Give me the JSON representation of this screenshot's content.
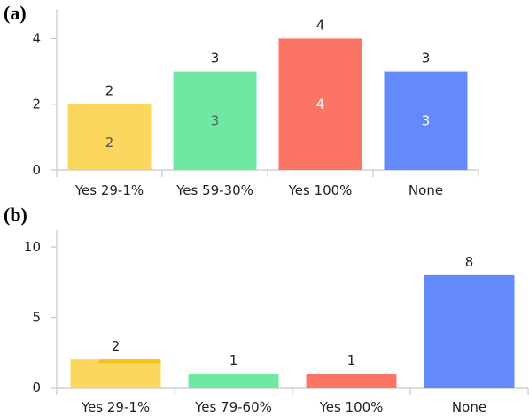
{
  "chart_data": [
    {
      "panel_label": "(a)",
      "type": "bar",
      "categories": [
        "Yes 29-1%",
        "Yes 59-30%",
        "Yes 100%",
        "None"
      ],
      "values": [
        2,
        3,
        4,
        3
      ],
      "inside_labels": [
        "2",
        "3",
        "4",
        "3"
      ],
      "colors": [
        "#fcd75e",
        "#6ee8a3",
        "#fc7564",
        "#6489fa"
      ],
      "inside_label_colors": [
        "#555555",
        "#4a6658",
        "#ffffff",
        "#ffffff"
      ],
      "yticks": [
        0,
        2,
        4
      ],
      "ylim": [
        0,
        4.9
      ],
      "grid": false
    },
    {
      "panel_label": "(b)",
      "type": "bar",
      "categories": [
        "Yes 29-1%",
        "Yes 79-60%",
        "Yes 100%",
        "None"
      ],
      "values": [
        2,
        1,
        1,
        8
      ],
      "colors": [
        "#fcd75e",
        "#6ee8a3",
        "#fc7564",
        "#6489fa"
      ],
      "yticks": [
        0,
        5,
        10
      ],
      "ylim": [
        0,
        11.2
      ],
      "grid": false
    }
  ]
}
